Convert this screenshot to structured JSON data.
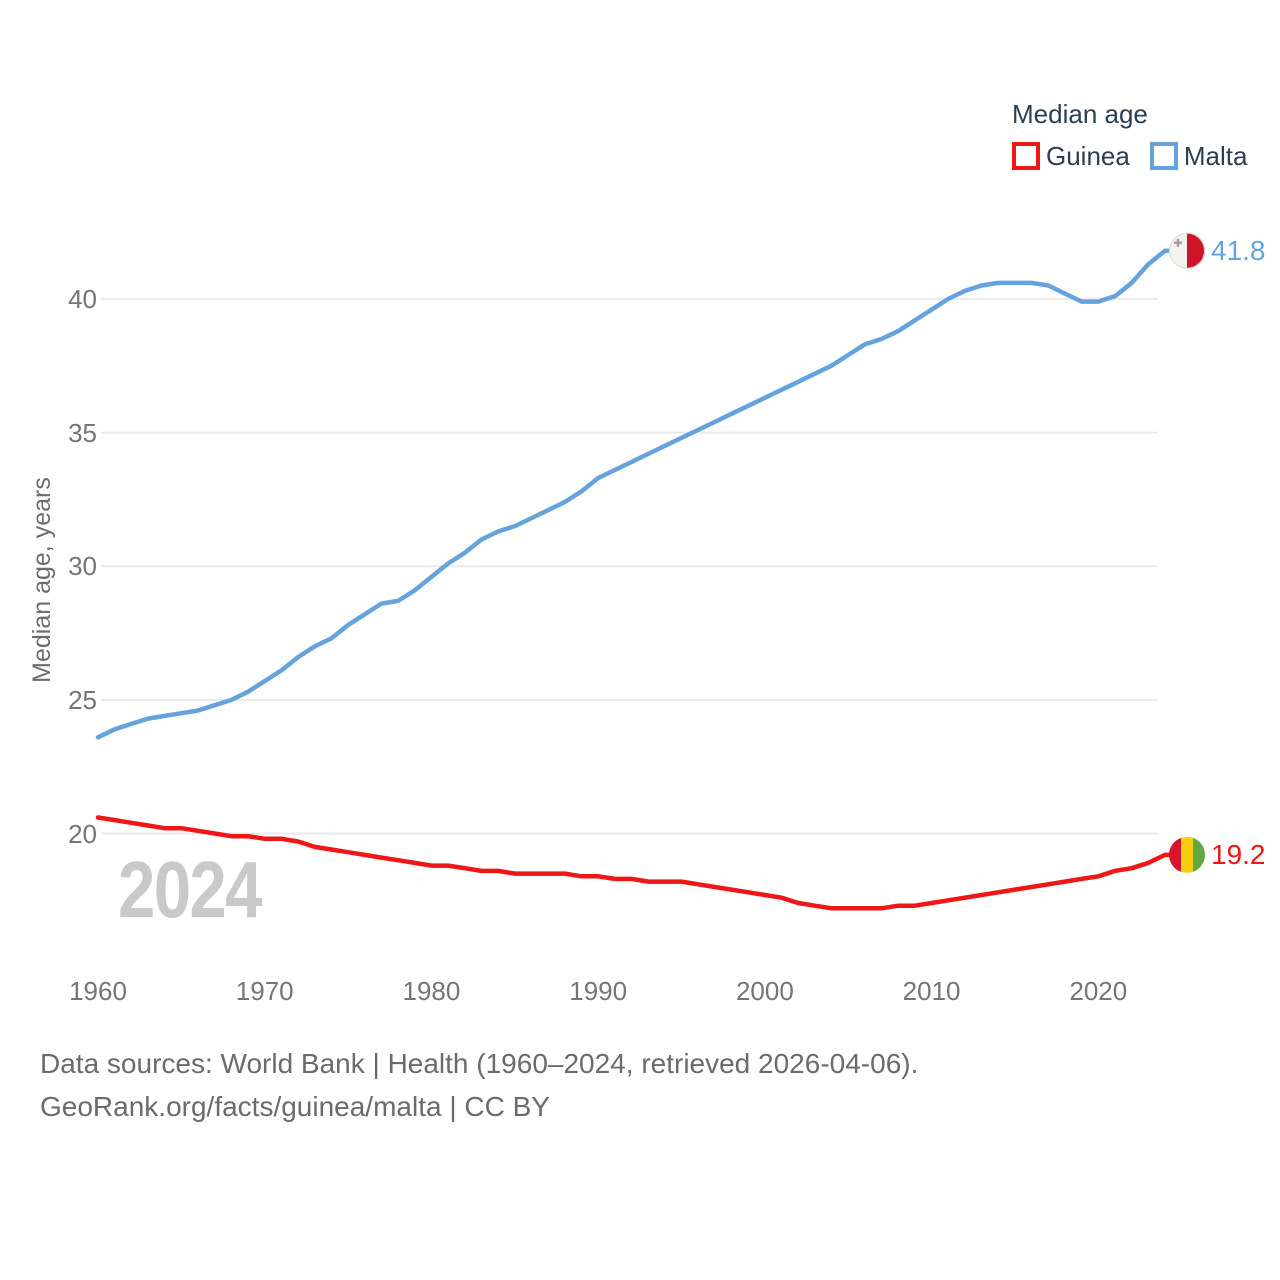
{
  "legend": {
    "title": "Median age",
    "series": [
      {
        "label": "Guinea",
        "color": "#ef1616"
      },
      {
        "label": "Malta",
        "color": "#66a3dc"
      }
    ]
  },
  "watermark": "2024",
  "footer": {
    "line1": "Data sources: World Bank | Health (1960–2024, retrieved 2026-04-06).",
    "line2": "GeoRank.org/facts/guinea/malta | CC BY"
  },
  "chart_data": {
    "type": "line",
    "title": "Median age",
    "xlabel": "",
    "ylabel": "Median age, years",
    "grid": true,
    "legend_position": "top-right",
    "x_ticks": [
      1960,
      1970,
      1980,
      1990,
      2000,
      2010,
      2020
    ],
    "y_ticks": [
      20,
      25,
      30,
      35,
      40
    ],
    "xlim": [
      1960,
      2024
    ],
    "ylim": [
      17,
      42.5
    ],
    "x": [
      1960,
      1961,
      1962,
      1963,
      1964,
      1965,
      1966,
      1967,
      1968,
      1969,
      1970,
      1971,
      1972,
      1973,
      1974,
      1975,
      1976,
      1977,
      1978,
      1979,
      1980,
      1981,
      1982,
      1983,
      1984,
      1985,
      1986,
      1987,
      1988,
      1989,
      1990,
      1991,
      1992,
      1993,
      1994,
      1995,
      1996,
      1997,
      1998,
      1999,
      2000,
      2001,
      2002,
      2003,
      2004,
      2005,
      2006,
      2007,
      2008,
      2009,
      2010,
      2011,
      2012,
      2013,
      2014,
      2015,
      2016,
      2017,
      2018,
      2019,
      2020,
      2021,
      2022,
      2023,
      2024
    ],
    "series": [
      {
        "name": "Guinea",
        "color": "#ef1616",
        "end_label": "19.2",
        "flag": {
          "type": "vertical-stripes",
          "colors": [
            "#d6152c",
            "#f7cf12",
            "#61a843"
          ]
        },
        "values": [
          20.6,
          20.5,
          20.4,
          20.3,
          20.2,
          20.2,
          20.1,
          20.0,
          19.9,
          19.9,
          19.8,
          19.8,
          19.7,
          19.5,
          19.4,
          19.3,
          19.2,
          19.1,
          19.0,
          18.9,
          18.8,
          18.8,
          18.7,
          18.6,
          18.6,
          18.5,
          18.5,
          18.5,
          18.5,
          18.4,
          18.4,
          18.3,
          18.3,
          18.2,
          18.2,
          18.2,
          18.1,
          18.0,
          17.9,
          17.8,
          17.7,
          17.6,
          17.4,
          17.3,
          17.2,
          17.2,
          17.2,
          17.2,
          17.3,
          17.3,
          17.4,
          17.5,
          17.6,
          17.7,
          17.8,
          17.9,
          18.0,
          18.1,
          18.2,
          18.3,
          18.4,
          18.6,
          18.7,
          18.9,
          19.2
        ]
      },
      {
        "name": "Malta",
        "color": "#66a3dc",
        "end_label": "41.8",
        "flag": {
          "type": "half",
          "colors": [
            "#f4f2ef",
            "#ce1528"
          ],
          "cross_color": "#9e9e9e"
        },
        "values": [
          23.6,
          23.9,
          24.1,
          24.3,
          24.4,
          24.5,
          24.6,
          24.8,
          25.0,
          25.3,
          25.7,
          26.1,
          26.6,
          27.0,
          27.3,
          27.8,
          28.2,
          28.6,
          28.7,
          29.1,
          29.6,
          30.1,
          30.5,
          31.0,
          31.3,
          31.5,
          31.8,
          32.1,
          32.4,
          32.8,
          33.3,
          33.6,
          33.9,
          34.2,
          34.5,
          34.8,
          35.1,
          35.4,
          35.7,
          36.0,
          36.3,
          36.6,
          36.9,
          37.2,
          37.5,
          37.9,
          38.3,
          38.5,
          38.8,
          39.2,
          39.6,
          40.0,
          40.3,
          40.5,
          40.6,
          40.6,
          40.6,
          40.5,
          40.2,
          39.9,
          39.9,
          40.1,
          40.6,
          41.3,
          41.8
        ]
      }
    ]
  }
}
